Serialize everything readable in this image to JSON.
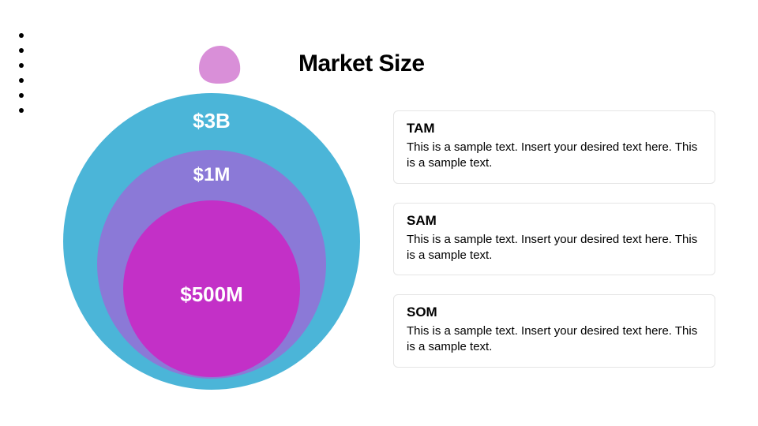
{
  "title": {
    "text": "Market Size",
    "fontsize": 30,
    "color": "#000000"
  },
  "dot_grid": {
    "rows": 3,
    "cols": 2,
    "color": "#000000"
  },
  "blob": {
    "color": "#d98fd8",
    "width": 62,
    "height": 52
  },
  "diagram": {
    "type": "nested-circles",
    "background_color": "#ffffff",
    "value_text_color": "#ffffff",
    "value_fontsize_outer": 26,
    "value_fontsize_middle": 24,
    "value_fontsize_inner": 26,
    "circles": {
      "outer": {
        "label": "$3B",
        "fill": "#4bb5d8",
        "diameter": 376
      },
      "middle": {
        "label": "$1M",
        "fill": "#8b79d7",
        "diameter": 290
      },
      "inner": {
        "label": "$500M",
        "fill": "#c330c7",
        "diameter": 224
      }
    }
  },
  "cards": {
    "title_fontsize": 17,
    "desc_fontsize": 15,
    "title_color": "#000000",
    "desc_color": "#000000",
    "border_color": "#e5e5e5",
    "items": [
      {
        "title": "TAM",
        "desc": "This is a sample text. Insert your desired text here. This is a sample text."
      },
      {
        "title": "SAM",
        "desc": "This is a sample text. Insert your desired text here. This is a sample text."
      },
      {
        "title": "SOM",
        "desc": "This is a sample text. Insert your desired text here. This is a sample text."
      }
    ]
  }
}
